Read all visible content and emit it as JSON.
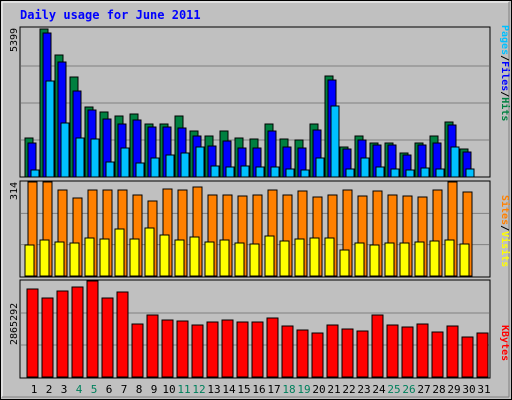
{
  "chart_data": {
    "type": "bar",
    "title": "Daily usage for June 2011",
    "categories": [
      "1",
      "2",
      "3",
      "4",
      "5",
      "6",
      "7",
      "8",
      "9",
      "10",
      "11",
      "12",
      "13",
      "14",
      "15",
      "16",
      "17",
      "18",
      "19",
      "20",
      "21",
      "22",
      "23",
      "24",
      "25",
      "26",
      "27",
      "28",
      "29",
      "30",
      "31"
    ],
    "weekend_days": [
      "4",
      "5",
      "11",
      "12",
      "18",
      "19",
      "25",
      "26"
    ],
    "panels": [
      {
        "id": "hits-files-pages",
        "max_label": "5399",
        "ylim": [
          0,
          5399
        ],
        "legend": [
          {
            "text": "Pages",
            "color": "#00c0ff"
          },
          {
            "text": "/",
            "color": "#000000"
          },
          {
            "text": "Files",
            "color": "#0000ff"
          },
          {
            "text": "/",
            "color": "#000000"
          },
          {
            "text": "Hits",
            "color": "#008040"
          }
        ],
        "series": [
          {
            "name": "Hits",
            "color": "#008040",
            "values": [
              1424,
              5399,
              4436,
              3638,
              2550,
              2362,
              2230,
              2306,
              1940,
              1940,
              2211,
              1679,
              1506,
              1679,
              1424,
              1395,
              1940,
              1395,
              1349,
              1940,
              3699,
              1097,
              1506,
              1235,
              1235,
              871,
              1235,
              1506,
              2021,
              1017,
              0
            ]
          },
          {
            "name": "Files",
            "color": "#0000ff",
            "values": [
              1235,
              5240,
              4205,
              3120,
              2440,
              2101,
              1940,
              2062,
              1829,
              1829,
              1790,
              1480,
              1138,
              1312,
              1065,
              1065,
              1679,
              1097,
              1065,
              1708,
              3552,
              1017,
              1349,
              1180,
              1180,
              809,
              1180,
              1235,
              1886,
              929,
              0
            ]
          },
          {
            "name": "Pages",
            "color": "#00c0ff",
            "values": [
              250,
              3520,
              1970,
              1440,
              1380,
              548,
              1040,
              500,
              710,
              810,
              880,
              1090,
              400,
              380,
              400,
              380,
              360,
              300,
              270,
              700,
              2600,
              290,
              700,
              350,
              300,
              250,
              330,
              300,
              1100,
              290,
              0
            ]
          }
        ]
      },
      {
        "id": "visits-sites",
        "max_label": "314",
        "ylim": [
          0,
          314
        ],
        "legend": [
          {
            "text": "Sites",
            "color": "#ff8000"
          },
          {
            "text": "/",
            "color": "#000000"
          },
          {
            "text": "Visits",
            "color": "#ffff00"
          }
        ],
        "series": [
          {
            "name": "Visits",
            "color": "#ff8000",
            "values": [
              314,
              314,
              286,
              260,
              288,
              288,
              288,
              271,
              251,
              292,
              288,
              298,
              272,
              271,
              268,
              272,
              288,
              272,
              284,
              264,
              272,
              288,
              266,
              284,
              272,
              268,
              264,
              288,
              314,
              279,
              0
            ]
          },
          {
            "name": "Sites",
            "color": "#ffff00",
            "values": [
              105,
              120,
              115,
              110,
              128,
              123,
              158,
              125,
              161,
              138,
              121,
              129,
              115,
              120,
              110,
              108,
              132,
              118,
              125,
              128,
              128,
              88,
              110,
              104,
              110,
              110,
              112,
              118,
              121,
              108,
              0
            ]
          }
        ]
      },
      {
        "id": "kbytes",
        "max_label": "2865292",
        "ylim": [
          0,
          2865292
        ],
        "legend": [
          {
            "text": "KBytes",
            "color": "#ff0000"
          }
        ],
        "series": [
          {
            "name": "KBytes",
            "color": "#ff0000",
            "values": [
              2640000,
              2370000,
              2570000,
              2680000,
              2865292,
              2350000,
              2550000,
              1590000,
              1850000,
              1710000,
              1670000,
              1550000,
              1630000,
              1690000,
              1630000,
              1630000,
              1770000,
              1510000,
              1400000,
              1310000,
              1560000,
              1440000,
              1370000,
              1840000,
              1540000,
              1480000,
              1570000,
              1350000,
              1520000,
              1190000,
              1310000
            ]
          }
        ]
      }
    ],
    "grid": true,
    "legend_position": "right"
  }
}
